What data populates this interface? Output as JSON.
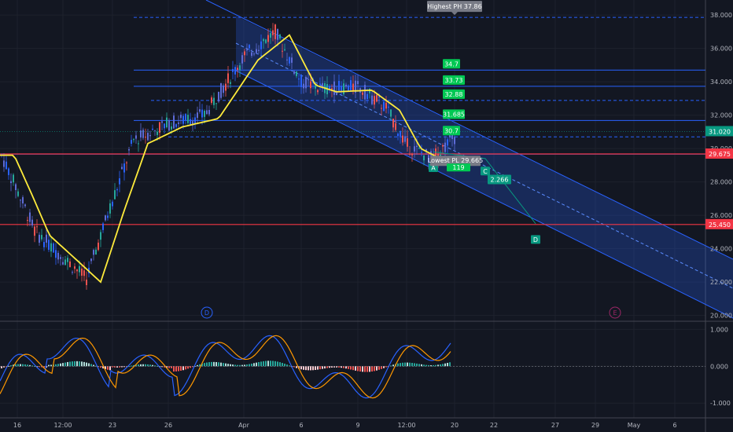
{
  "price_axis": {
    "ticks": [
      "38.000",
      "36.000",
      "34.000",
      "32.000",
      "30.000",
      "28.000",
      "26.000",
      "24.000",
      "22.000",
      "20.000"
    ],
    "badges": [
      {
        "value": "31.020",
        "color": "#089981"
      },
      {
        "value": "29.675",
        "color": "#f23645"
      },
      {
        "value": "25.450",
        "color": "#f23645"
      }
    ]
  },
  "osc_axis": {
    "ticks": [
      "1.000",
      "0.000",
      "-1.000"
    ]
  },
  "time_axis": {
    "ticks": [
      "16",
      "12:00",
      "23",
      "26",
      "Apr",
      "6",
      "9",
      "12:00",
      "20",
      "22",
      "27",
      "29",
      "May",
      "6"
    ]
  },
  "chart_data": [
    {
      "type": "line",
      "name": "price",
      "ylim": [
        19.7,
        38.9
      ],
      "levels": [
        {
          "value": 37.86,
          "label": "Highest PH 37.86",
          "style": "dashed",
          "color": "#2962ff"
        },
        {
          "value": 34.7,
          "label": "34.7",
          "style": "solid",
          "color": "#2962ff"
        },
        {
          "value": 33.73,
          "label": "33.73",
          "style": "solid",
          "color": "#2962ff"
        },
        {
          "value": 32.88,
          "label": "32.88",
          "style": "dashed",
          "color": "#2962ff"
        },
        {
          "value": 31.685,
          "label": "31.685",
          "style": "solid",
          "color": "#2962ff"
        },
        {
          "value": 30.7,
          "label": "30.7",
          "style": "dashed",
          "color": "#2962ff"
        },
        {
          "value": 29.665,
          "label": "Lowest PL 29.665",
          "style": "solid",
          "color": "#2962ff"
        },
        {
          "value": 29.675,
          "label": "29.675",
          "style": "solid",
          "color": "#f23645"
        },
        {
          "value": 25.45,
          "label": "25.450",
          "style": "solid",
          "color": "#f23645"
        }
      ],
      "pattern_points": [
        {
          "label": "A",
          "price": 29.3
        },
        {
          "label": "C",
          "price": 29.1
        },
        {
          "label": "D",
          "price": 25.0
        }
      ],
      "pattern_ratio": "2.266",
      "obscured_label": "119",
      "markers": [
        {
          "label": "D"
        },
        {
          "label": "E"
        }
      ],
      "ma_color": "#ffeb3b"
    },
    {
      "type": "line",
      "name": "oscillator",
      "ylim": [
        -1.4,
        1.2
      ],
      "ticks": [
        1.0,
        0.0,
        -1.0
      ]
    }
  ]
}
